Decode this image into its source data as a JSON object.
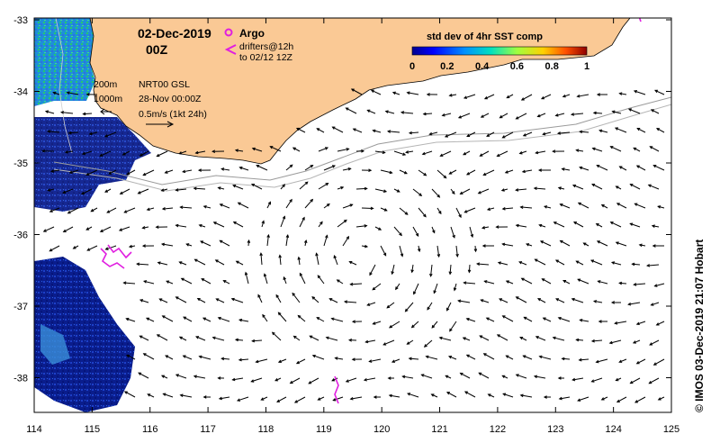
{
  "map": {
    "title": "02-Dec-2019",
    "time": "00Z",
    "legend": {
      "argo": "Argo",
      "drifters_line1": "drifters@12h",
      "drifters_line2": "to 02/12 12Z",
      "isobath_200": "200m",
      "isobath_1000": "1000m",
      "model": "NRT00 GSL",
      "model_time": "28-Nov 00:00Z",
      "scale": "0.5m/s (1kt 24h)"
    },
    "colorbar": {
      "title": "std dev of 4hr SST comp",
      "ticks": [
        "0",
        "0.2",
        "0.4",
        "0.6",
        "0.8",
        "1"
      ]
    },
    "x_ticks": [
      "114",
      "115",
      "116",
      "117",
      "118",
      "119",
      "120",
      "121",
      "122",
      "123",
      "124",
      "125"
    ],
    "y_ticks": [
      "-33",
      "-34",
      "-35",
      "-36",
      "-37",
      "-38"
    ],
    "credit": "© IMOS 03-Dec-2019 21:07 Hobart",
    "colors": {
      "land": "#FAC995",
      "argo": "#E01EE0",
      "drifter": "#E01EE0",
      "ocean": "#FFFFFF"
    }
  }
}
